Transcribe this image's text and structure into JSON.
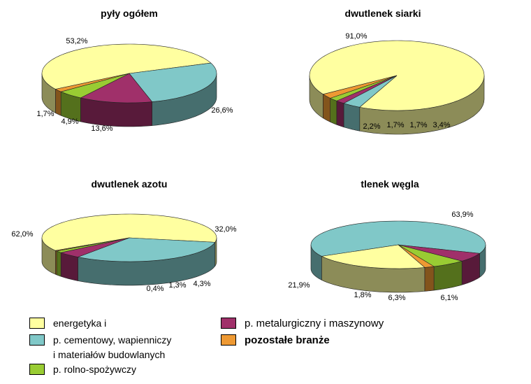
{
  "colors": {
    "energetyka": "#FFFFA0",
    "cementowy": "#80C8C8",
    "metalurgiczny": "#A0306A",
    "rolno": "#99CC33",
    "pozostale": "#EE9933"
  },
  "legend": {
    "items": [
      {
        "key": "energetyka",
        "label": "energetyka i",
        "label2": ""
      },
      {
        "key": "cementowy",
        "label": "p. cementowy, wapienniczy",
        "label2": "i materiałów budowlanych"
      },
      {
        "key": "rolno",
        "label": "p. rolno-spożywczy",
        "label2": ""
      },
      {
        "key": "metalurgiczny",
        "label": "p. metalurgiczny i maszynowy",
        "label2": ""
      },
      {
        "key": "pozostale",
        "label": "pozostałe branże",
        "label2": ""
      }
    ]
  },
  "chart_data": [
    {
      "type": "pie",
      "title": "pyły ogółem",
      "slices": [
        {
          "key": "energetyka",
          "value": 53.2,
          "label": "53,2%"
        },
        {
          "key": "cementowy",
          "value": 26.6,
          "label": "26,6%"
        },
        {
          "key": "metalurgiczny",
          "value": 13.6,
          "label": "13,6%"
        },
        {
          "key": "rolno",
          "value": 4.9,
          "label": "4,9%"
        },
        {
          "key": "pozostale",
          "value": 1.7,
          "label": "1,7%"
        }
      ]
    },
    {
      "type": "pie",
      "title": "dwutlenek siarki",
      "slices": [
        {
          "key": "energetyka",
          "value": 91.0,
          "label": "91,0%"
        },
        {
          "key": "cementowy",
          "value": 3.4,
          "label": "3,4%"
        },
        {
          "key": "metalurgiczny",
          "value": 1.7,
          "label": "1,7%"
        },
        {
          "key": "rolno",
          "value": 1.7,
          "label": "1,7%"
        },
        {
          "key": "pozostale",
          "value": 2.2,
          "label": "2,2%"
        }
      ]
    },
    {
      "type": "pie",
      "title": "dwutlenek azotu",
      "slices": [
        {
          "key": "energetyka",
          "value": 62.0,
          "label": "62,0%"
        },
        {
          "key": "cementowy",
          "value": 32.0,
          "label": "32,0%"
        },
        {
          "key": "metalurgiczny",
          "value": 4.3,
          "label": "4,3%"
        },
        {
          "key": "rolno",
          "value": 1.3,
          "label": "1,3%"
        },
        {
          "key": "pozostale",
          "value": 0.4,
          "label": "0,4%"
        }
      ]
    },
    {
      "type": "pie",
      "title": "tlenek węgla",
      "slices": [
        {
          "key": "energetyka",
          "value": 21.9,
          "label": "21,9%"
        },
        {
          "key": "cementowy",
          "value": 63.9,
          "label": "63,9%"
        },
        {
          "key": "metalurgiczny",
          "value": 6.1,
          "label": "6,1%"
        },
        {
          "key": "rolno",
          "value": 6.3,
          "label": "6,3%"
        },
        {
          "key": "pozostale",
          "value": 1.8,
          "label": "1,8%"
        }
      ]
    }
  ]
}
